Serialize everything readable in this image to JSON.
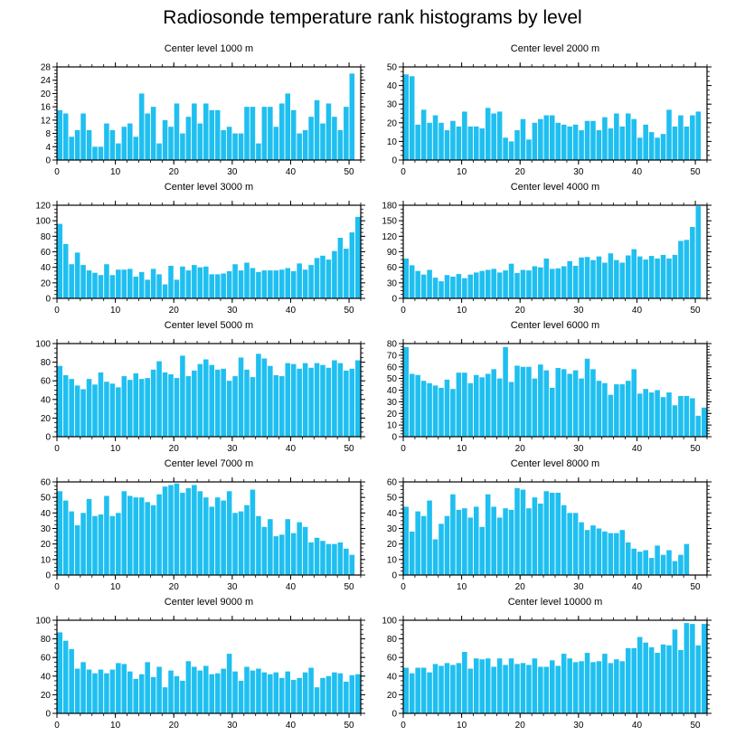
{
  "title": "Radiosonde temperature rank histograms by level",
  "colors": {
    "bar": "#1fbff0",
    "axis": "#000000"
  },
  "chart_data": [
    {
      "type": "bar",
      "title": "Center level 1000 m",
      "xlim": [
        0,
        52
      ],
      "ylim": [
        0,
        28
      ],
      "xticks": [
        0,
        10,
        20,
        30,
        40,
        50
      ],
      "yticks": [
        0,
        4,
        8,
        12,
        16,
        20,
        24,
        28
      ],
      "x": [
        0,
        1,
        2,
        3,
        4,
        5,
        6,
        7,
        8,
        9,
        10,
        11,
        12,
        13,
        14,
        15,
        16,
        17,
        18,
        19,
        20,
        21,
        22,
        23,
        24,
        25,
        26,
        27,
        28,
        29,
        30,
        31,
        32,
        33,
        34,
        35,
        36,
        37,
        38,
        39,
        40,
        41,
        42,
        43,
        44,
        45,
        46,
        47,
        48,
        49,
        50,
        51
      ],
      "values": [
        15,
        14,
        7,
        9,
        14,
        9,
        4,
        4,
        11,
        9,
        5,
        10,
        11,
        7,
        20,
        14,
        16,
        5,
        12,
        10,
        17,
        8,
        13,
        17,
        11,
        17,
        15,
        15,
        9,
        10,
        8,
        8,
        16,
        16,
        5,
        16,
        16,
        10,
        17,
        20,
        15,
        8,
        9,
        13,
        18,
        11,
        17,
        13,
        9,
        16,
        26,
        0
      ]
    },
    {
      "type": "bar",
      "title": "Center level 2000 m",
      "xlim": [
        0,
        52
      ],
      "ylim": [
        0,
        50
      ],
      "xticks": [
        0,
        10,
        20,
        30,
        40,
        50
      ],
      "yticks": [
        0,
        10,
        20,
        30,
        40,
        50
      ],
      "x": [
        0,
        1,
        2,
        3,
        4,
        5,
        6,
        7,
        8,
        9,
        10,
        11,
        12,
        13,
        14,
        15,
        16,
        17,
        18,
        19,
        20,
        21,
        22,
        23,
        24,
        25,
        26,
        27,
        28,
        29,
        30,
        31,
        32,
        33,
        34,
        35,
        36,
        37,
        38,
        39,
        40,
        41,
        42,
        43,
        44,
        45,
        46,
        47,
        48,
        49,
        50,
        51
      ],
      "values": [
        46,
        45,
        19,
        27,
        20,
        24,
        20,
        16,
        21,
        18,
        26,
        18,
        18,
        17,
        28,
        25,
        26,
        12,
        10,
        16,
        22,
        11,
        20,
        22,
        24,
        24,
        20,
        19,
        18,
        19,
        16,
        21,
        21,
        16,
        23,
        17,
        25,
        18,
        25,
        22,
        12,
        19,
        15,
        12,
        14,
        27,
        18,
        24,
        18,
        24,
        26,
        0
      ]
    },
    {
      "type": "bar",
      "title": "Center level 3000 m",
      "xlim": [
        0,
        52
      ],
      "ylim": [
        0,
        120
      ],
      "xticks": [
        0,
        10,
        20,
        30,
        40,
        50
      ],
      "yticks": [
        0,
        20,
        40,
        60,
        80,
        100,
        120
      ],
      "x": [
        0,
        1,
        2,
        3,
        4,
        5,
        6,
        7,
        8,
        9,
        10,
        11,
        12,
        13,
        14,
        15,
        16,
        17,
        18,
        19,
        20,
        21,
        22,
        23,
        24,
        25,
        26,
        27,
        28,
        29,
        30,
        31,
        32,
        33,
        34,
        35,
        36,
        37,
        38,
        39,
        40,
        41,
        42,
        43,
        44,
        45,
        46,
        47,
        48,
        49,
        50,
        51
      ],
      "values": [
        96,
        70,
        44,
        59,
        43,
        36,
        33,
        30,
        44,
        30,
        37,
        37,
        38,
        28,
        34,
        24,
        38,
        31,
        18,
        42,
        24,
        41,
        36,
        43,
        40,
        41,
        31,
        31,
        32,
        35,
        44,
        36,
        46,
        39,
        34,
        36,
        36,
        36,
        37,
        39,
        35,
        45,
        37,
        43,
        52,
        55,
        50,
        61,
        78,
        64,
        85,
        105
      ]
    },
    {
      "type": "bar",
      "title": "Center level 4000 m",
      "xlim": [
        0,
        52
      ],
      "ylim": [
        0,
        180
      ],
      "xticks": [
        0,
        10,
        20,
        30,
        40,
        50
      ],
      "yticks": [
        0,
        30,
        60,
        90,
        120,
        150,
        180
      ],
      "x": [
        0,
        1,
        2,
        3,
        4,
        5,
        6,
        7,
        8,
        9,
        10,
        11,
        12,
        13,
        14,
        15,
        16,
        17,
        18,
        19,
        20,
        21,
        22,
        23,
        24,
        25,
        26,
        27,
        28,
        29,
        30,
        31,
        32,
        33,
        34,
        35,
        36,
        37,
        38,
        39,
        40,
        41,
        42,
        43,
        44,
        45,
        46,
        47,
        48,
        49,
        50,
        51
      ],
      "values": [
        77,
        64,
        53,
        46,
        55,
        40,
        33,
        45,
        42,
        47,
        39,
        46,
        50,
        53,
        55,
        57,
        50,
        54,
        67,
        49,
        55,
        54,
        62,
        60,
        77,
        57,
        58,
        62,
        72,
        63,
        79,
        80,
        74,
        81,
        69,
        87,
        74,
        69,
        83,
        95,
        81,
        75,
        82,
        77,
        84,
        77,
        84,
        111,
        113,
        138,
        178,
        0
      ]
    },
    {
      "type": "bar",
      "title": "Center level 5000 m",
      "xlim": [
        0,
        52
      ],
      "ylim": [
        0,
        100
      ],
      "xticks": [
        0,
        10,
        20,
        30,
        40,
        50
      ],
      "yticks": [
        0,
        20,
        40,
        60,
        80,
        100
      ],
      "x": [
        0,
        1,
        2,
        3,
        4,
        5,
        6,
        7,
        8,
        9,
        10,
        11,
        12,
        13,
        14,
        15,
        16,
        17,
        18,
        19,
        20,
        21,
        22,
        23,
        24,
        25,
        26,
        27,
        28,
        29,
        30,
        31,
        32,
        33,
        34,
        35,
        36,
        37,
        38,
        39,
        40,
        41,
        42,
        43,
        44,
        45,
        46,
        47,
        48,
        49,
        50,
        51
      ],
      "values": [
        76,
        66,
        62,
        55,
        51,
        62,
        56,
        69,
        59,
        57,
        53,
        65,
        61,
        68,
        62,
        63,
        72,
        81,
        69,
        67,
        63,
        87,
        65,
        71,
        78,
        83,
        77,
        72,
        73,
        60,
        65,
        85,
        72,
        64,
        89,
        84,
        76,
        66,
        65,
        79,
        78,
        73,
        79,
        74,
        79,
        77,
        74,
        82,
        79,
        71,
        73,
        82
      ]
    },
    {
      "type": "bar",
      "title": "Center level 6000 m",
      "xlim": [
        0,
        52
      ],
      "ylim": [
        0,
        80
      ],
      "xticks": [
        0,
        10,
        20,
        30,
        40,
        50
      ],
      "yticks": [
        0,
        10,
        20,
        30,
        40,
        50,
        60,
        70,
        80
      ],
      "x": [
        0,
        1,
        2,
        3,
        4,
        5,
        6,
        7,
        8,
        9,
        10,
        11,
        12,
        13,
        14,
        15,
        16,
        17,
        18,
        19,
        20,
        21,
        22,
        23,
        24,
        25,
        26,
        27,
        28,
        29,
        30,
        31,
        32,
        33,
        34,
        35,
        36,
        37,
        38,
        39,
        40,
        41,
        42,
        43,
        44,
        45,
        46,
        47,
        48,
        49,
        50,
        51
      ],
      "values": [
        77,
        54,
        53,
        48,
        46,
        44,
        42,
        49,
        41,
        55,
        55,
        46,
        53,
        51,
        54,
        58,
        50,
        77,
        47,
        61,
        60,
        60,
        50,
        62,
        57,
        42,
        59,
        58,
        54,
        57,
        50,
        67,
        58,
        48,
        46,
        36,
        45,
        45,
        48,
        58,
        37,
        41,
        38,
        40,
        34,
        38,
        27,
        35,
        35,
        33,
        18,
        25
      ]
    },
    {
      "type": "bar",
      "title": "Center level 7000 m",
      "xlim": [
        0,
        52
      ],
      "ylim": [
        0,
        60
      ],
      "xticks": [
        0,
        10,
        20,
        30,
        40,
        50
      ],
      "yticks": [
        0,
        10,
        20,
        30,
        40,
        50,
        60
      ],
      "x": [
        0,
        1,
        2,
        3,
        4,
        5,
        6,
        7,
        8,
        9,
        10,
        11,
        12,
        13,
        14,
        15,
        16,
        17,
        18,
        19,
        20,
        21,
        22,
        23,
        24,
        25,
        26,
        27,
        28,
        29,
        30,
        31,
        32,
        33,
        34,
        35,
        36,
        37,
        38,
        39,
        40,
        41,
        42,
        43,
        44,
        45,
        46,
        47,
        48,
        49,
        50,
        51
      ],
      "values": [
        54,
        48,
        41,
        32,
        40,
        49,
        38,
        39,
        51,
        38,
        40,
        54,
        51,
        50,
        50,
        47,
        45,
        52,
        57,
        58,
        59,
        53,
        56,
        58,
        54,
        50,
        44,
        50,
        48,
        54,
        40,
        41,
        45,
        55,
        38,
        31,
        36,
        25,
        26,
        36,
        27,
        34,
        31,
        21,
        24,
        22,
        20,
        20,
        21,
        17,
        13,
        0
      ]
    },
    {
      "type": "bar",
      "title": "Center level 8000 m",
      "xlim": [
        0,
        52
      ],
      "ylim": [
        0,
        60
      ],
      "xticks": [
        0,
        10,
        20,
        30,
        40,
        50
      ],
      "yticks": [
        0,
        10,
        20,
        30,
        40,
        50,
        60
      ],
      "x": [
        0,
        1,
        2,
        3,
        4,
        5,
        6,
        7,
        8,
        9,
        10,
        11,
        12,
        13,
        14,
        15,
        16,
        17,
        18,
        19,
        20,
        21,
        22,
        23,
        24,
        25,
        26,
        27,
        28,
        29,
        30,
        31,
        32,
        33,
        34,
        35,
        36,
        37,
        38,
        39,
        40,
        41,
        42,
        43,
        44,
        45,
        46,
        47,
        48,
        49,
        50,
        51
      ],
      "values": [
        44,
        28,
        41,
        38,
        48,
        23,
        33,
        38,
        52,
        42,
        43,
        37,
        44,
        31,
        52,
        44,
        37,
        43,
        42,
        56,
        55,
        43,
        50,
        46,
        54,
        53,
        53,
        45,
        40,
        40,
        34,
        29,
        32,
        30,
        28,
        27,
        27,
        29,
        21,
        17,
        15,
        16,
        11,
        19,
        13,
        16,
        9,
        13,
        20,
        0,
        0,
        0
      ]
    },
    {
      "type": "bar",
      "title": "Center level 9000 m",
      "xlim": [
        0,
        52
      ],
      "ylim": [
        0,
        100
      ],
      "xticks": [
        0,
        10,
        20,
        30,
        40,
        50
      ],
      "yticks": [
        0,
        20,
        40,
        60,
        80,
        100
      ],
      "x": [
        0,
        1,
        2,
        3,
        4,
        5,
        6,
        7,
        8,
        9,
        10,
        11,
        12,
        13,
        14,
        15,
        16,
        17,
        18,
        19,
        20,
        21,
        22,
        23,
        24,
        25,
        26,
        27,
        28,
        29,
        30,
        31,
        32,
        33,
        34,
        35,
        36,
        37,
        38,
        39,
        40,
        41,
        42,
        43,
        44,
        45,
        46,
        47,
        48,
        49,
        50,
        51
      ],
      "values": [
        87,
        78,
        69,
        48,
        55,
        47,
        43,
        47,
        43,
        47,
        54,
        53,
        45,
        37,
        42,
        55,
        39,
        50,
        28,
        46,
        40,
        35,
        56,
        50,
        46,
        51,
        42,
        43,
        48,
        64,
        45,
        35,
        50,
        46,
        48,
        44,
        42,
        44,
        38,
        45,
        36,
        38,
        44,
        49,
        28,
        38,
        40,
        44,
        43,
        34,
        41,
        42
      ]
    },
    {
      "type": "bar",
      "title": "Center level 10000 m",
      "xlim": [
        0,
        52
      ],
      "ylim": [
        0,
        100
      ],
      "xticks": [
        0,
        10,
        20,
        30,
        40,
        50
      ],
      "yticks": [
        0,
        20,
        40,
        60,
        80,
        100
      ],
      "x": [
        0,
        1,
        2,
        3,
        4,
        5,
        6,
        7,
        8,
        9,
        10,
        11,
        12,
        13,
        14,
        15,
        16,
        17,
        18,
        19,
        20,
        21,
        22,
        23,
        24,
        25,
        26,
        27,
        28,
        29,
        30,
        31,
        32,
        33,
        34,
        35,
        36,
        37,
        38,
        39,
        40,
        41,
        42,
        43,
        44,
        45,
        46,
        47,
        48,
        49,
        50,
        51
      ],
      "values": [
        49,
        43,
        49,
        49,
        44,
        53,
        51,
        54,
        52,
        54,
        66,
        48,
        59,
        58,
        59,
        50,
        59,
        52,
        59,
        53,
        54,
        52,
        59,
        50,
        50,
        57,
        51,
        64,
        59,
        55,
        56,
        65,
        55,
        56,
        64,
        54,
        58,
        56,
        70,
        70,
        82,
        76,
        71,
        65,
        74,
        73,
        90,
        68,
        97,
        96,
        73,
        96
      ]
    }
  ]
}
